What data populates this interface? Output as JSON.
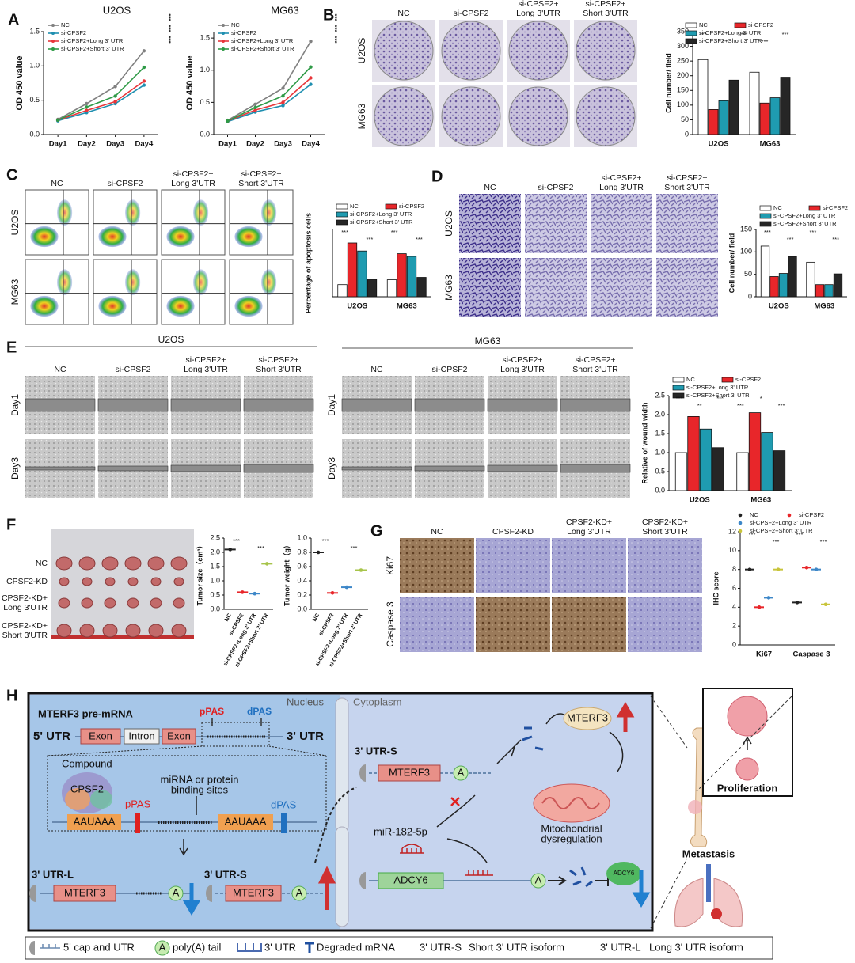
{
  "panel_labels": [
    "A",
    "B",
    "C",
    "D",
    "E",
    "F",
    "G",
    "H"
  ],
  "charts": [
    {
      "type": "line",
      "title": "U2OS",
      "ylabel": "OD 450 value",
      "categories": [
        "Day1",
        "Day2",
        "Day3",
        "Day4"
      ],
      "series": [
        {
          "name": "NC",
          "color": "#808080",
          "values": [
            0.22,
            0.45,
            0.7,
            1.22
          ]
        },
        {
          "name": "si-CPSF2",
          "color": "#1f8fb0",
          "values": [
            0.2,
            0.32,
            0.45,
            0.72
          ]
        },
        {
          "name": "si-CPSF2+Long 3' UTR",
          "color": "#e8363a",
          "values": [
            0.21,
            0.35,
            0.48,
            0.78
          ]
        },
        {
          "name": "si-CPSF2+Short 3' UTR",
          "color": "#2e9a46",
          "values": [
            0.21,
            0.4,
            0.56,
            0.98
          ]
        }
      ],
      "ylim": [
        0,
        1.5
      ],
      "yticks": [
        {
          "value": 0,
          "label": "0.0"
        },
        0.5,
        {
          "value": 1,
          "label": "1.0"
        },
        1.5
      ],
      "annotations": [
        "***",
        "***",
        "***"
      ]
    },
    {
      "type": "line",
      "title": "MG63",
      "ylabel": "OD 450 value",
      "categories": [
        "Day1",
        "Day2",
        "Day3",
        "Day4"
      ],
      "series": [
        {
          "name": "NC",
          "color": "#808080",
          "values": [
            0.22,
            0.47,
            0.72,
            1.45
          ]
        },
        {
          "name": "si-CPSF2",
          "color": "#1f8fb0",
          "values": [
            0.2,
            0.35,
            0.45,
            0.78
          ]
        },
        {
          "name": "si-CPSF2+Long 3' UTR",
          "color": "#e8363a",
          "values": [
            0.21,
            0.38,
            0.5,
            0.88
          ]
        },
        {
          "name": "si-CPSF2+Short 3' UTR",
          "color": "#2e9a46",
          "values": [
            0.21,
            0.42,
            0.6,
            1.05
          ]
        }
      ],
      "ylim": [
        0,
        1.6
      ],
      "yticks": [
        {
          "value": 0,
          "label": "0.0"
        },
        0.5,
        {
          "value": 1,
          "label": "1.0"
        },
        1.5
      ],
      "annotations": [
        "***",
        "***",
        "***"
      ]
    },
    {
      "type": "bar",
      "ylabel": "Cell number/ field",
      "categories": [
        "U2OS",
        "MG63"
      ],
      "series": [
        {
          "name": "NC",
          "color": "#ffffff",
          "values": [
            255,
            212
          ]
        },
        {
          "name": "si-CPSF2",
          "color": "#e8262a",
          "values": [
            85,
            107
          ]
        },
        {
          "name": "si-CPSF2+Long 3' UTR",
          "color": "#1f9bb0",
          "values": [
            115,
            125
          ]
        },
        {
          "name": "si-CPSF2+Short 3' UTR",
          "color": "#262626",
          "values": [
            185,
            195
          ]
        }
      ],
      "ylim": [
        0,
        350
      ],
      "yticks": [
        0,
        50,
        100,
        150,
        200,
        250,
        300,
        350
      ],
      "annotations": [
        "***",
        "*",
        "***",
        "***",
        "***"
      ]
    },
    {
      "type": "bar",
      "ylabel": "Percentage of apoptosis cells",
      "categories": [
        "U2OS",
        "MG63"
      ],
      "series": [
        {
          "name": "NC",
          "color": "#ffffff",
          "values": [
            4.5,
            6.3
          ]
        },
        {
          "name": "si-CPSF2",
          "color": "#e8262a",
          "values": [
            20,
            16
          ]
        },
        {
          "name": "si-CPSF2+Long 3' UTR",
          "color": "#1f9bb0",
          "values": [
            17,
            15
          ]
        },
        {
          "name": "si-CPSF2+Short 3' UTR",
          "color": "#262626",
          "values": [
            6.5,
            7.2
          ]
        }
      ],
      "ylim": [
        0,
        25
      ],
      "yticks": [],
      "annotations": [
        "***",
        "***",
        "***",
        "***"
      ]
    },
    {
      "type": "bar",
      "ylabel": "Cell number/ field",
      "categories": [
        "U2OS",
        "MG63"
      ],
      "series": [
        {
          "name": "NC",
          "color": "#ffffff",
          "values": [
            113,
            77
          ]
        },
        {
          "name": "si-CPSF2",
          "color": "#e8262a",
          "values": [
            45,
            27
          ]
        },
        {
          "name": "si-CPSF2+Long 3' UTR",
          "color": "#1f9bb0",
          "values": [
            52,
            27
          ]
        },
        {
          "name": "si-CPSF2+Short 3' UTR",
          "color": "#262626",
          "values": [
            90,
            51
          ]
        }
      ],
      "ylim": [
        0,
        150
      ],
      "yticks": [
        0,
        50,
        100,
        150
      ],
      "annotations": [
        "***",
        "***",
        "***",
        "***"
      ]
    },
    {
      "type": "bar",
      "ylabel": "Relative of wound width",
      "categories": [
        "U2OS",
        "MG63"
      ],
      "series": [
        {
          "name": "NC",
          "color": "#ffffff",
          "values": [
            1,
            1
          ]
        },
        {
          "name": "si-CPSF2",
          "color": "#e8262a",
          "values": [
            1.95,
            2.05
          ]
        },
        {
          "name": "si-CPSF2+Long 3' UTR",
          "color": "#1f9bb0",
          "values": [
            1.62,
            1.53
          ]
        },
        {
          "name": "si-CPSF2+Short 3' UTR",
          "color": "#262626",
          "values": [
            1.13,
            1.05
          ]
        }
      ],
      "ylim": [
        0,
        2.5
      ],
      "yticks": [
        {
          "value": 0,
          "label": "0.0"
        },
        0.5,
        {
          "value": 1,
          "label": "1.0"
        },
        1.5,
        {
          "value": 2,
          "label": "2.0"
        },
        2.5
      ],
      "annotations": [
        "***",
        "**",
        "***",
        "***",
        "*",
        "***"
      ]
    },
    {
      "type": "scatter",
      "ylabel": "Tumor size（cm³）",
      "categories": [
        "NC",
        "si-CPSF2",
        "si-CPSF2+Long 3' UTR",
        "si-CPSF2+Short 3' UTR"
      ],
      "values": [
        2.1,
        0.6,
        0.55,
        1.6
      ],
      "colors": [
        "#222222",
        "#e8262a",
        "#3d87c8",
        "#a7c44a"
      ],
      "ylim": [
        0,
        2.5
      ],
      "yticks": [
        {
          "value": 0,
          "label": "0.0"
        },
        0.5,
        {
          "value": 1,
          "label": "1.0"
        },
        1.5,
        {
          "value": 2,
          "label": "2.0"
        },
        2.5
      ],
      "annotations": [
        "***",
        "***"
      ]
    },
    {
      "type": "scatter",
      "ylabel": "Tumor weight（g）",
      "categories": [
        "NC",
        "si-CPSF2",
        "si-CPSF2+Long 3' UTR",
        "si-CPSF2+Short 3' UTR"
      ],
      "values": [
        0.8,
        0.23,
        0.31,
        0.55
      ],
      "colors": [
        "#222222",
        "#e8262a",
        "#3d87c8",
        "#a7c44a"
      ],
      "ylim": [
        0,
        1
      ],
      "yticks": [
        {
          "value": 0,
          "label": "0.0"
        },
        0.2,
        0.4,
        0.6,
        0.8,
        {
          "value": 1,
          "label": "1.0"
        }
      ],
      "annotations": [
        "***",
        "***"
      ]
    },
    {
      "type": "scatter",
      "ylabel": "IHC score",
      "categories": [
        "Ki67",
        "Caspase 3"
      ],
      "series": [
        {
          "name": "NC",
          "color": "#222222",
          "values": [
            8,
            4.5
          ]
        },
        {
          "name": "si-CPSF2",
          "color": "#e8262a",
          "values": [
            4,
            8.2
          ]
        },
        {
          "name": "si-CPSF2+Long 3' UTR",
          "color": "#3d87c8",
          "values": [
            5,
            8
          ]
        },
        {
          "name": "si-CPSF2+Short 3' UTR",
          "color": "#c8c43a",
          "values": [
            8,
            4.3
          ]
        }
      ],
      "ylim": [
        0,
        12
      ],
      "yticks": [
        0,
        2,
        4,
        6,
        8,
        10,
        12
      ],
      "annotations": [
        "***",
        "***",
        "***",
        "***"
      ]
    }
  ],
  "photo_grids": [
    {
      "columns": [
        [
          "NC"
        ],
        [
          "si-CPSF2"
        ],
        [
          "si-CPSF2+",
          "Long 3'UTR"
        ],
        [
          "si-CPSF2+",
          "Short 3'UTR"
        ]
      ],
      "rows": [
        [
          "U2OS"
        ],
        [
          "MG63"
        ]
      ]
    },
    {
      "columns": [
        [
          "NC"
        ],
        [
          "si-CPSF2"
        ],
        [
          "si-CPSF2+",
          "Long 3'UTR"
        ],
        [
          "si-CPSF2+",
          "Short 3'UTR"
        ]
      ],
      "rows": [
        [
          "U2OS"
        ],
        [
          "MG63"
        ]
      ]
    },
    {
      "columns": [
        [
          "NC"
        ],
        [
          "si-CPSF2"
        ],
        [
          "si-CPSF2+",
          "Long 3'UTR"
        ],
        [
          "si-CPSF2+",
          "Short 3'UTR"
        ]
      ],
      "rows": [
        [
          "U2OS"
        ],
        [
          "MG63"
        ]
      ]
    },
    {
      "title": "U2OS",
      "columns": [
        [
          "NC"
        ],
        [
          "si-CPSF2"
        ],
        [
          "si-CPSF2+",
          "Long 3'UTR"
        ],
        [
          "si-CPSF2+",
          "Short 3'UTR"
        ]
      ],
      "rows": [
        [
          "Day1"
        ],
        [
          "Day3"
        ]
      ]
    },
    {
      "title": "MG63",
      "columns": [
        [
          "NC"
        ],
        [
          "si-CPSF2"
        ],
        [
          "si-CPSF2+",
          "Long 3'UTR"
        ],
        [
          "si-CPSF2+",
          "Short 3'UTR"
        ]
      ],
      "rows": [
        [
          "Day1"
        ],
        [
          "Day3"
        ]
      ]
    },
    {
      "columns": [],
      "rows": [
        [
          "NC"
        ],
        [
          "CPSF2-KD"
        ],
        [
          "CPSF2-KD+",
          "Long 3'UTR"
        ],
        [
          "CPSF2-KD+",
          "Short 3'UTR"
        ]
      ]
    },
    {
      "columns": [
        [
          "NC"
        ],
        [
          "CPSF2-KD"
        ],
        [
          "CPSF2-KD+",
          "Long 3'UTR"
        ],
        [
          "CPSF2-KD+",
          "Short 3'UTR"
        ]
      ],
      "rows": [
        [
          "Ki67"
        ],
        [
          "Caspase 3"
        ]
      ]
    }
  ],
  "diagram": {
    "pre_mrna": "MTERF3 pre-mRNA",
    "nucleus": "Nucleus",
    "cytoplasm": "Cytoplasm",
    "ppas": "pPAS",
    "dpas": "dPAS",
    "utr5": "5' UTR",
    "exon1": "Exon",
    "intron": "Intron",
    "exon2": "Exon",
    "utr3": "3' UTR",
    "compound": "Compound",
    "cpsf2": "CPSF2",
    "binding": [
      "miRNA or protein",
      "binding sites"
    ],
    "ppas2": "pPAS",
    "dpas2": "dPAS",
    "signal1": "AAUAAA",
    "signal2": "AAUAAA",
    "utr_l": "3' UTR-L",
    "mterf3_l": "MTERF3",
    "a_l": "A",
    "utr_s": "3' UTR-S",
    "mterf3_s": "MTERF3",
    "a_s": "A",
    "utr_s2": "3' UTR-S",
    "mterf3_s2": "MTERF3",
    "a_s2": "A",
    "mirna": "miR-182-5p",
    "adcy6": "ADCY6",
    "a_adcy6": "A",
    "adcy6_protein": "ADCY6",
    "mterf3_protein": "MTERF3",
    "mito": [
      "Mitochondrial",
      "dysregulation"
    ],
    "proliferation": "Proliferation",
    "metastasis": "Metastasis"
  },
  "legend": {
    "cap": "5' cap and UTR",
    "a": "A",
    "polya": "poly(A) tail",
    "utr3": "3' UTR",
    "degraded": "Degraded mRNA",
    "s_key": "3' UTR-S",
    "s_desc": "Short 3' UTR isoform",
    "l_key": "3' UTR-L",
    "l_desc": "Long 3' UTR isoform"
  }
}
